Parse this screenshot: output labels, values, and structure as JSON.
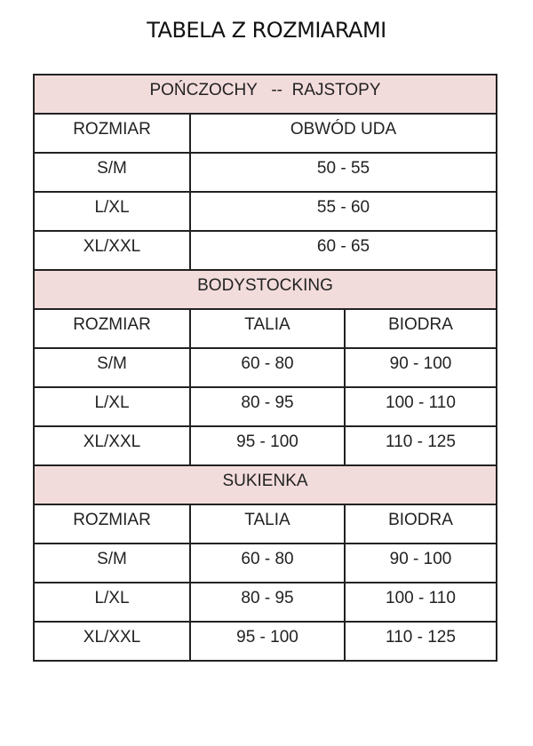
{
  "title": "TABELA Z ROZMIARAMI",
  "colors": {
    "section_header_bg": "#f2dcdb",
    "border": "#222222"
  },
  "sections": [
    {
      "heading": "POŃCZOCHY   --  RAJSTOPY",
      "columns": [
        "ROZMIAR",
        "OBWÓD UDA"
      ],
      "rows": [
        [
          "S/M",
          "50 - 55"
        ],
        [
          "L/XL",
          "55 - 60"
        ],
        [
          "XL/XXL",
          "60 - 65"
        ]
      ]
    },
    {
      "heading": "BODYSTOCKING",
      "columns": [
        "ROZMIAR",
        "TALIA",
        "BIODRA"
      ],
      "rows": [
        [
          "S/M",
          "60 - 80",
          "90 - 100"
        ],
        [
          "L/XL",
          "80 - 95",
          "100 - 110"
        ],
        [
          "XL/XXL",
          "95 - 100",
          "110 - 125"
        ]
      ]
    },
    {
      "heading": "SUKIENKA",
      "columns": [
        "ROZMIAR",
        "TALIA",
        "BIODRA"
      ],
      "rows": [
        [
          "S/M",
          "60 - 80",
          "90 - 100"
        ],
        [
          "L/XL",
          "80 - 95",
          "100 - 110"
        ],
        [
          "XL/XXL",
          "95 - 100",
          "110 - 125"
        ]
      ]
    }
  ]
}
